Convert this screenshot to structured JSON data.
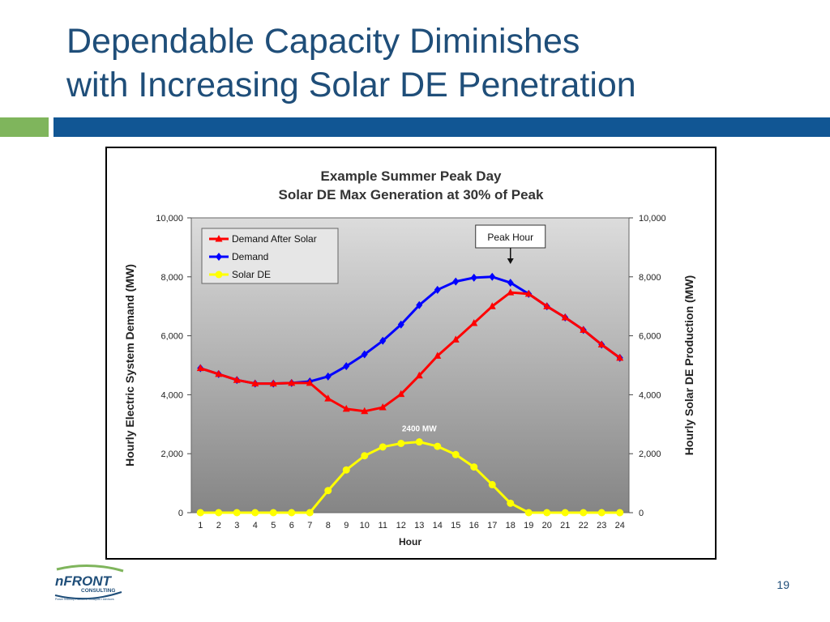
{
  "slide": {
    "title_line1": "Dependable Capacity Diminishes",
    "title_line2": "with Increasing Solar DE Penetration",
    "page_number": "19"
  },
  "logo": {
    "name": "nFRONT",
    "subtitle": "CONSULTING",
    "tagline": "Power Industry Planners • Analysts • Advisors",
    "colors": {
      "primary": "#1f4e79",
      "accent": "#7fb55c"
    }
  },
  "chart_data": {
    "type": "line",
    "title_line1": "Example Summer Peak Day",
    "title_line2": "Solar DE Max Generation at 30% of Peak",
    "xlabel": "Hour",
    "ylabel_left": "Hourly Electric System Demand (MW)",
    "ylabel_right": "Hourly Solar DE Production (MW)",
    "ylim": [
      0,
      10000
    ],
    "y_ticks": [
      0,
      2000,
      4000,
      6000,
      8000,
      10000
    ],
    "y_tick_labels": [
      "0",
      "2,000",
      "4,000",
      "6,000",
      "8,000",
      "10,000"
    ],
    "x": [
      1,
      2,
      3,
      4,
      5,
      6,
      7,
      8,
      9,
      10,
      11,
      12,
      13,
      14,
      15,
      16,
      17,
      18,
      19,
      20,
      21,
      22,
      23,
      24
    ],
    "legend_position": "top-left",
    "series": [
      {
        "name": "Demand After Solar",
        "color": "#ff0000",
        "marker": "triangle",
        "values": [
          4900,
          4700,
          4500,
          4380,
          4380,
          4400,
          4400,
          3870,
          3520,
          3440,
          3570,
          4020,
          4650,
          5320,
          5870,
          6430,
          7000,
          7470,
          7420,
          7000,
          6620,
          6200,
          5700,
          5250
        ]
      },
      {
        "name": "Demand",
        "color": "#0000ff",
        "marker": "diamond",
        "values": [
          4900,
          4700,
          4500,
          4380,
          4380,
          4400,
          4450,
          4620,
          4970,
          5370,
          5830,
          6380,
          7040,
          7560,
          7840,
          7970,
          8000,
          7800,
          7420,
          7000,
          6620,
          6200,
          5700,
          5250
        ]
      },
      {
        "name": "Solar DE",
        "color": "#ffff00",
        "marker": "circle",
        "values": [
          0,
          0,
          0,
          0,
          0,
          0,
          0,
          750,
          1450,
          1930,
          2230,
          2350,
          2400,
          2250,
          1970,
          1550,
          950,
          320,
          0,
          0,
          0,
          0,
          0,
          0
        ]
      }
    ],
    "annotations": [
      {
        "text": "Peak Hour",
        "x": 18,
        "kind": "callout-arrow"
      },
      {
        "text": "2400 MW",
        "x": 13,
        "y": 2400,
        "kind": "label"
      }
    ],
    "colors": {
      "plot_top": "#dcdcdc",
      "plot_bottom": "#858585"
    }
  }
}
